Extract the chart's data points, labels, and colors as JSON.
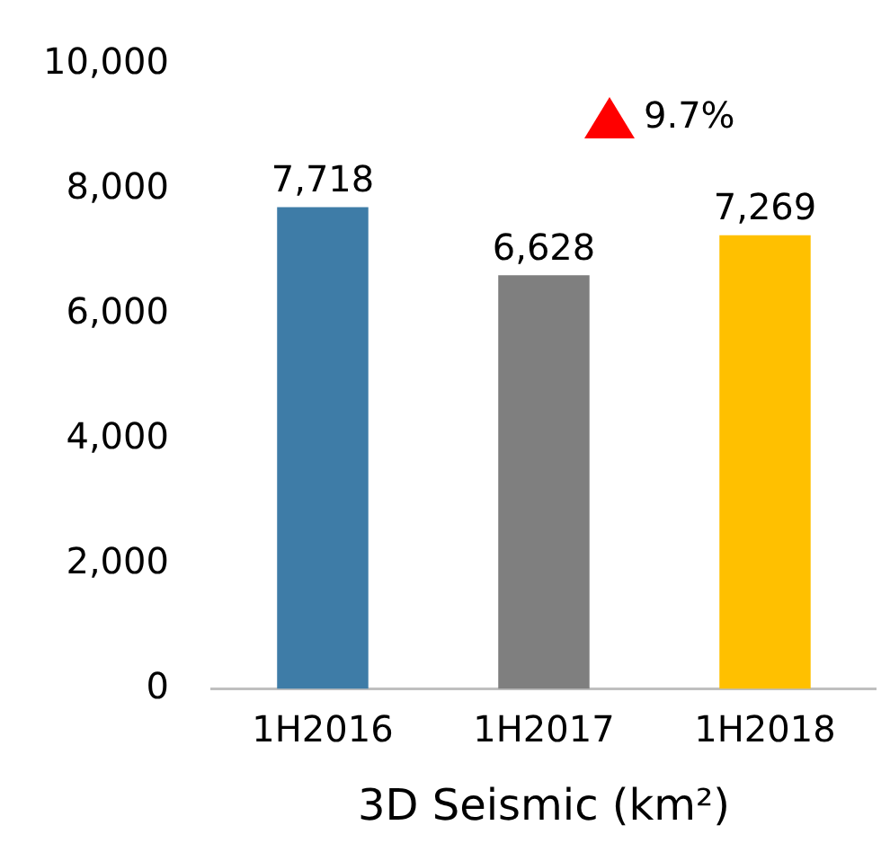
{
  "chart_data": {
    "type": "bar",
    "xlabel": "3D Seismic (km²)",
    "categories": [
      "1H2016",
      "1H2017",
      "1H2018"
    ],
    "values": [
      7718,
      6628,
      7269
    ],
    "colors": [
      "#3e7ca7",
      "#7f7f7f",
      "#ffc000"
    ],
    "value_labels": [
      "7,718",
      "6,628",
      "7,269"
    ],
    "ylim": [
      0,
      10000
    ],
    "yticks": [
      {
        "value": 0,
        "label": "0"
      },
      {
        "value": 2000,
        "label": "2,000"
      },
      {
        "value": 4000,
        "label": "4,000"
      },
      {
        "value": 6000,
        "label": "6,000"
      },
      {
        "value": 8000,
        "label": "8,000"
      },
      {
        "value": 10000,
        "label": "10,000"
      }
    ],
    "grid": false,
    "legend": false,
    "annotations": [
      "9.7%"
    ]
  }
}
